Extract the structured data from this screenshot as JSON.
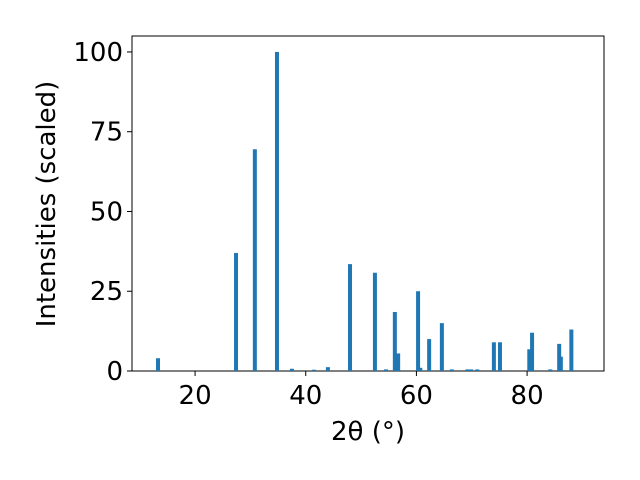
{
  "chart_data": {
    "type": "bar",
    "xlabel": "2θ (°)",
    "ylabel": "Intensities (scaled)",
    "color": "#1f77b4",
    "x": [
      13.3,
      27.4,
      30.8,
      34.8,
      37.5,
      41.5,
      44.0,
      48.0,
      52.5,
      54.5,
      56.1,
      56.7,
      60.3,
      60.7,
      62.3,
      64.6,
      66.4,
      69.2,
      69.9,
      71.0,
      74.0,
      75.1,
      80.4,
      80.9,
      84.2,
      85.8,
      86.1,
      88.0
    ],
    "values": [
      4,
      37,
      69.5,
      100,
      0.7,
      0.4,
      1.2,
      33.5,
      30.8,
      0.5,
      18.5,
      5.5,
      25,
      1,
      10,
      15,
      0.5,
      0.5,
      0.5,
      0.5,
      9,
      9,
      6.8,
      12,
      0.5,
      8.5,
      4.5,
      13
    ],
    "xlim": [
      8.6,
      93.9
    ],
    "ylim": [
      0,
      105
    ],
    "xticks": [
      20,
      40,
      60,
      80
    ],
    "yticks": [
      0,
      25,
      50,
      75,
      100
    ]
  }
}
